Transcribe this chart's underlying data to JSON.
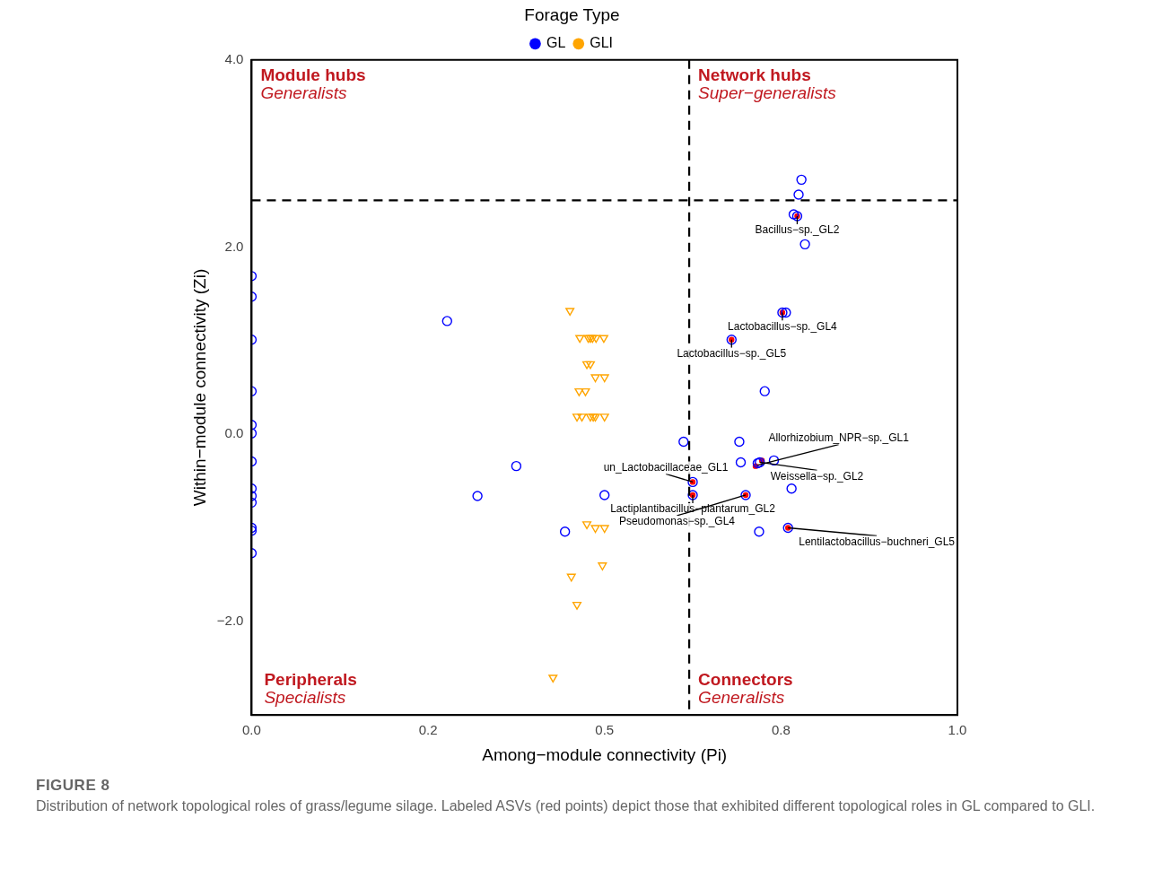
{
  "chart_data": {
    "type": "scatter",
    "xlabel": "Among−module connectivity (Pi)",
    "ylabel": "Within−module connectivity (Zi)",
    "legend_title": "Forage Type",
    "legend": "top",
    "grid": false,
    "xlim": [
      0,
      1
    ],
    "xticks": [
      {
        "value": 0,
        "label": "0.0"
      },
      {
        "value": 0.25,
        "label": "0.2"
      },
      {
        "value": 0.5,
        "label": "0.5"
      },
      {
        "value": 0.75,
        "label": "0.8"
      },
      {
        "value": 1,
        "label": "1.0"
      }
    ],
    "ylim": [
      -3,
      4
    ],
    "yticks": [
      {
        "value": 4,
        "label": "4.0"
      },
      {
        "value": 2,
        "label": "2.0"
      },
      {
        "value": 0,
        "label": "0.0"
      },
      {
        "value": -2,
        "label": "−2.0"
      }
    ],
    "series": [
      {
        "name": "GL",
        "color": "#0000ff",
        "marker": "circle",
        "x": [
          0,
          0,
          0,
          0,
          0,
          0,
          0,
          0,
          0,
          0,
          0,
          0,
          0,
          0.277,
          0.32,
          0.375,
          0.444,
          0.5,
          0.612,
          0.625,
          0.625,
          0.779,
          0.775,
          0.768,
          0.773,
          0.784,
          0.752,
          0.757,
          0.68,
          0.727,
          0.691,
          0.693,
          0.717,
          0.72,
          0.74,
          0.7,
          0.765,
          0.719,
          0.76
        ],
        "values": [
          1.69,
          1.47,
          1.01,
          0.46,
          0.1,
          0.01,
          -0.29,
          -0.58,
          -0.66,
          -0.73,
          -1.0,
          -1.03,
          -1.27,
          1.21,
          -0.66,
          -0.34,
          -1.04,
          -0.65,
          -0.08,
          -0.51,
          -0.65,
          2.72,
          2.56,
          2.35,
          2.33,
          2.03,
          1.3,
          1.3,
          1.01,
          0.46,
          -0.08,
          -0.3,
          -0.31,
          -0.3,
          -0.28,
          -0.65,
          -0.58,
          -1.04,
          -1.0
        ]
      },
      {
        "name": "GLI",
        "color": "#ffa500",
        "marker": "triangle",
        "x": [
          0.451,
          0.465,
          0.477,
          0.48,
          0.483,
          0.488,
          0.499,
          0.475,
          0.48,
          0.487,
          0.5,
          0.464,
          0.473,
          0.461,
          0.468,
          0.48,
          0.484,
          0.487,
          0.5,
          0.475,
          0.487,
          0.5,
          0.497,
          0.453,
          0.461,
          0.427
        ],
        "values": [
          1.32,
          1.03,
          1.03,
          1.03,
          1.03,
          1.03,
          1.03,
          0.75,
          0.75,
          0.61,
          0.61,
          0.46,
          0.46,
          0.19,
          0.19,
          0.19,
          0.19,
          0.19,
          0.19,
          -0.96,
          -1.0,
          -1.0,
          -1.4,
          -1.52,
          -1.82,
          -2.6
        ]
      },
      {
        "color": "#ff0000",
        "marker": "circle",
        "x": [
          0.773,
          0.752,
          0.68,
          0.723,
          0.714,
          0.625,
          0.625,
          0.7,
          0.76
        ],
        "values": [
          2.33,
          1.3,
          1.01,
          -0.28,
          -0.34,
          -0.51,
          -0.65,
          -0.65,
          -1.0
        ]
      }
    ],
    "ref_lines": [
      {
        "axis": "x",
        "value": 0.62,
        "line_style": "dashed",
        "color": "#000000"
      },
      {
        "axis": "y",
        "value": 2.5,
        "line_style": "dashed",
        "color": "#000000"
      }
    ],
    "annotations": [
      "Module hubs\nGeneralists",
      "Network hubs\nSuper−generalists",
      "Peripherals\nSpecialists",
      "Connectors\nGeneralists",
      "FIGURE 8",
      "Distribution of network topological roles of grass/legume silage. Labeled ASVs (red points) depict those that exhibited different topological roles in GL compared to GLI.",
      {
        "text": "Bacillus−sp._GL2",
        "x": 0.773,
        "y": 2.33
      },
      {
        "text": "Lactobacillus−sp._GL4",
        "x": 0.752,
        "y": 1.3
      },
      {
        "text": "Lactobacillus−sp._GL5",
        "x": 0.68,
        "y": 1.01
      },
      {
        "text": "Weissella−sp._GL2",
        "x": 0.72,
        "y": -0.3
      },
      {
        "text": "Allorhizobium_NPR−sp._GL1",
        "x": 0.717,
        "y": -0.33
      },
      {
        "text": "un_Lactobacillaceae_GL1",
        "x": 0.625,
        "y": -0.51
      },
      {
        "text": "Lactiplantibacillus−plantarum_GL2",
        "x": 0.625,
        "y": -0.65
      },
      {
        "text": "Pseudomonas−sp._GL4",
        "x": 0.7,
        "y": -0.65
      },
      {
        "text": "Lentilactobacillus−buchneri_GL5",
        "x": 0.76,
        "y": -1.0
      }
    ]
  }
}
